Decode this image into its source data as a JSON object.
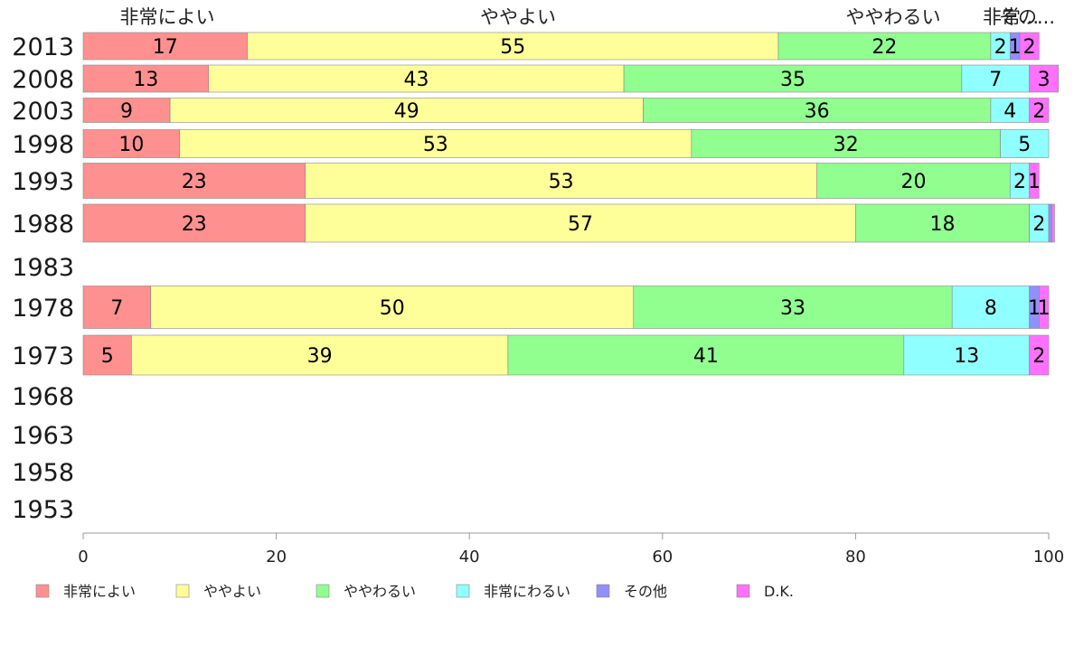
{
  "chart_data": {
    "type": "bar",
    "orientation": "horizontal",
    "stacked": true,
    "xlim": [
      0,
      100
    ],
    "xticks": [
      0,
      20,
      40,
      60,
      80,
      100
    ],
    "categories": [
      "2013",
      "2008",
      "2003",
      "1998",
      "1993",
      "1988",
      "1983",
      "1978",
      "1973",
      "1968",
      "1963",
      "1958",
      "1953"
    ],
    "series": [
      {
        "name": "非常によい",
        "color": "#ff9090",
        "values": [
          17,
          13,
          9,
          10,
          23,
          23,
          null,
          7,
          5,
          null,
          null,
          null,
          null
        ]
      },
      {
        "name": "ややよい",
        "color": "#ffff99",
        "values": [
          55,
          43,
          49,
          53,
          53,
          57,
          null,
          50,
          39,
          null,
          null,
          null,
          null
        ]
      },
      {
        "name": "ややわるい",
        "color": "#90ff90",
        "values": [
          22,
          35,
          36,
          32,
          20,
          18,
          null,
          33,
          41,
          null,
          null,
          null,
          null
        ]
      },
      {
        "name": "非常にわるい",
        "color": "#90ffff",
        "values": [
          2,
          7,
          4,
          5,
          2,
          2,
          null,
          8,
          13,
          null,
          null,
          null,
          null
        ]
      },
      {
        "name": "その他",
        "color": "#9090ff",
        "values": [
          1,
          0,
          0,
          0,
          0,
          0.3,
          null,
          1,
          0,
          null,
          null,
          null,
          null
        ]
      },
      {
        "name": "D.K.",
        "color": "#ff70ff",
        "values": [
          2,
          3,
          2,
          0,
          1,
          0.3,
          null,
          1,
          2,
          null,
          null,
          null,
          null
        ]
      }
    ],
    "top_labels": [
      "非常によい",
      "ややよい",
      "ややわるい",
      "非常...",
      "その..."
    ],
    "legend_position": "bottom"
  }
}
